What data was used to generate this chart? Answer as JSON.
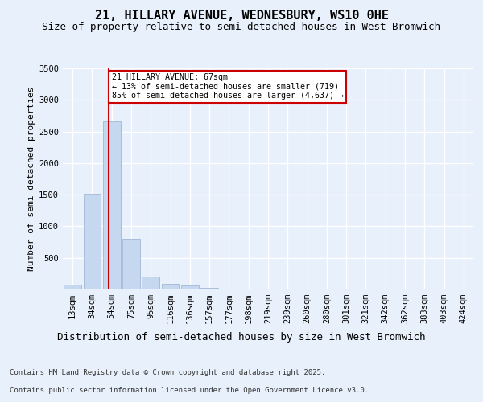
{
  "title": "21, HILLARY AVENUE, WEDNESBURY, WS10 0HE",
  "subtitle": "Size of property relative to semi-detached houses in West Bromwich",
  "xlabel": "Distribution of semi-detached houses by size in West Bromwich",
  "ylabel": "Number of semi-detached properties",
  "footer_line1": "Contains HM Land Registry data © Crown copyright and database right 2025.",
  "footer_line2": "Contains public sector information licensed under the Open Government Licence v3.0.",
  "bin_labels": [
    "13sqm",
    "34sqm",
    "54sqm",
    "75sqm",
    "95sqm",
    "116sqm",
    "136sqm",
    "157sqm",
    "177sqm",
    "198sqm",
    "219sqm",
    "239sqm",
    "260sqm",
    "280sqm",
    "301sqm",
    "321sqm",
    "342sqm",
    "362sqm",
    "383sqm",
    "403sqm",
    "424sqm"
  ],
  "bar_values": [
    80,
    1510,
    2660,
    800,
    210,
    95,
    60,
    30,
    10,
    0,
    0,
    0,
    0,
    0,
    0,
    0,
    0,
    0,
    0,
    0,
    0
  ],
  "bar_color": "#c5d8f0",
  "bar_edge_color": "#a0b8d8",
  "property_line_x": 1.85,
  "property_size": "67sqm",
  "pct_smaller": 13,
  "n_smaller": 719,
  "pct_larger": 85,
  "n_larger": 4637,
  "annotation_text": "21 HILLARY AVENUE: 67sqm\n← 13% of semi-detached houses are smaller (719)\n85% of semi-detached houses are larger (4,637) →",
  "ylim": [
    0,
    3500
  ],
  "yticks": [
    0,
    500,
    1000,
    1500,
    2000,
    2500,
    3000,
    3500
  ],
  "bg_color": "#e8f0fb",
  "plot_bg": "#e8f0fb",
  "grid_color": "#ffffff",
  "red_line_color": "#cc0000",
  "annotation_box_color": "#ffffff",
  "annotation_box_edge": "#cc0000",
  "title_fontsize": 11,
  "subtitle_fontsize": 9,
  "ylabel_fontsize": 8,
  "xlabel_fontsize": 9,
  "tick_fontsize": 7.5,
  "footer_fontsize": 6.5
}
